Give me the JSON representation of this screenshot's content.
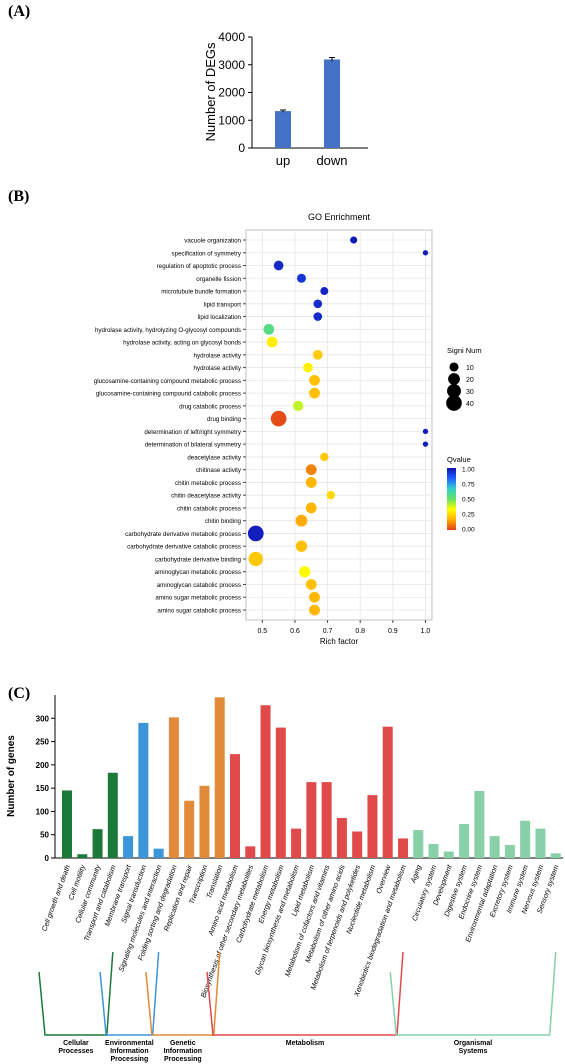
{
  "panels": {
    "a": "(A)",
    "b": "(B)",
    "c": "(C)"
  },
  "colors": {
    "bar_a": "#4472c4",
    "grid_b": "#e6e6e6",
    "qvalue_scale": [
      "#e0401a",
      "#ffb000",
      "#ffff00",
      "#66e066",
      "#33d0cc",
      "#2060ff",
      "#1010b0"
    ],
    "groups": {
      "cellular": "#1b7a3a",
      "environmental": "#3a96d8",
      "genetic": "#e08a3a",
      "metabolism": "#e04a4a",
      "organismal": "#88d0a8"
    }
  },
  "chart_data": [
    {
      "id": "A",
      "type": "bar",
      "categories": [
        "up",
        "down"
      ],
      "values": [
        1330,
        3190
      ],
      "errors": [
        40,
        70
      ],
      "title": "",
      "xlabel": "",
      "ylabel": "Number of DEGs",
      "ylim": [
        0,
        4000
      ],
      "yticks": [
        "0",
        "1000",
        "2000",
        "3000",
        "4000"
      ]
    },
    {
      "id": "B",
      "type": "scatter",
      "title": "GO Enrichment",
      "xlabel": "Rich factor",
      "xlim": [
        0.45,
        1.02
      ],
      "xticks": [
        "0.5",
        "0.6",
        "0.7",
        "0.8",
        "0.9",
        "1.0"
      ],
      "grid": true,
      "legend": {
        "size_title": "Signi Num",
        "size_labels": [
          "10",
          "20",
          "30",
          "40"
        ],
        "color_title": "Qvalue",
        "color_labels": [
          "1.00",
          "0.75",
          "0.50",
          "0.25",
          "0.00"
        ],
        "placement": "right"
      },
      "points": [
        {
          "term": "vacuole organization",
          "x": 0.78,
          "size": 5,
          "q": 0.98
        },
        {
          "term": "specification of symmetry",
          "x": 1.0,
          "size": 2,
          "q": 0.97
        },
        {
          "term": "regulation of apoptotic process",
          "x": 0.55,
          "size": 12,
          "q": 0.95
        },
        {
          "term": "organelle fission",
          "x": 0.62,
          "size": 10,
          "q": 0.92
        },
        {
          "term": "microtubule bundle formation",
          "x": 0.69,
          "size": 7,
          "q": 0.96
        },
        {
          "term": "lipid transport",
          "x": 0.67,
          "size": 9,
          "q": 0.94
        },
        {
          "term": "lipid localization",
          "x": 0.67,
          "size": 9,
          "q": 0.94
        },
        {
          "term": "hydrolase activity, hydrolyzing O-glycosyl compounds",
          "x": 0.52,
          "size": 16,
          "q": 0.55
        },
        {
          "term": "hydrolase activity, acting on glycosyl bonds",
          "x": 0.53,
          "size": 16,
          "q": 0.3
        },
        {
          "term": "hydrolase activity",
          "x": 0.67,
          "size": 12,
          "q": 0.22
        },
        {
          "term": "hydrolase activity",
          "x": 0.64,
          "size": 12,
          "q": 0.3
        },
        {
          "term": "glucosamine-containing compound metabolic process",
          "x": 0.66,
          "size": 16,
          "q": 0.2
        },
        {
          "term": "glucosamine-containing compound catabolic process",
          "x": 0.66,
          "size": 16,
          "q": 0.2
        },
        {
          "term": "drug catabolic process",
          "x": 0.61,
          "size": 14,
          "q": 0.4
        },
        {
          "term": "drug binding",
          "x": 0.55,
          "size": 40,
          "q": 0.02
        },
        {
          "term": "determination of left/right symmetry",
          "x": 1.0,
          "size": 2,
          "q": 0.97
        },
        {
          "term": "determination of bilateral symmetry",
          "x": 1.0,
          "size": 2,
          "q": 0.97
        },
        {
          "term": "deacetylase activity",
          "x": 0.69,
          "size": 8,
          "q": 0.22
        },
        {
          "term": "chitinase activity",
          "x": 0.65,
          "size": 16,
          "q": 0.1
        },
        {
          "term": "chitin metabolic process",
          "x": 0.65,
          "size": 16,
          "q": 0.18
        },
        {
          "term": "chitin deacetylase activity",
          "x": 0.71,
          "size": 8,
          "q": 0.25
        },
        {
          "term": "chitin catabolic process",
          "x": 0.65,
          "size": 16,
          "q": 0.18
        },
        {
          "term": "chitin binding",
          "x": 0.62,
          "size": 20,
          "q": 0.16
        },
        {
          "term": "carbohydrate derivative metabolic process",
          "x": 0.48,
          "size": 40,
          "q": 0.97
        },
        {
          "term": "carbohydrate derivative catabolic process",
          "x": 0.62,
          "size": 18,
          "q": 0.2
        },
        {
          "term": "carbohydrate derivative binding",
          "x": 0.48,
          "size": 32,
          "q": 0.22
        },
        {
          "term": "aminoglycan metabolic process",
          "x": 0.63,
          "size": 18,
          "q": 0.32
        },
        {
          "term": "aminoglycan catabolic process",
          "x": 0.65,
          "size": 16,
          "q": 0.2
        },
        {
          "term": "amino sugar metabolic process",
          "x": 0.66,
          "size": 16,
          "q": 0.18
        },
        {
          "term": "amino sugar catabolic process",
          "x": 0.66,
          "size": 16,
          "q": 0.18
        }
      ]
    },
    {
      "id": "C",
      "type": "bar",
      "ylabel": "Number of genes",
      "ylim": [
        0,
        350
      ],
      "yticks": [
        "0",
        "50",
        "100",
        "150",
        "200",
        "250",
        "300"
      ],
      "categories": [
        "Cell growth and death",
        "Cell motility",
        "Cellular community",
        "Transport and catabolism",
        "Membrane transport",
        "Signal transduction",
        "Signaling molecules and interaction",
        "Folding sorting and degradation",
        "Replication and repair",
        "Transcription",
        "Translation",
        "Amino acid metabolism",
        "Biosynthesis of other secondary metabolites",
        "Carbohydrate metabolism",
        "Energy metabolism",
        "Glycan biosynthesis and metabolism",
        "Lipid metabolism",
        "Metabolism of cofactors and vitamins",
        "Metabolism of other amino acids",
        "Metabolism of terpenoids and polyketides",
        "Nucleotide metabolism",
        "Overview",
        "Xenobiotics biodegradation and metabolism",
        "Aging",
        "Circulatory system",
        "Development",
        "Digestive system",
        "Endocrine system",
        "Environmental adaptation",
        "Excretory system",
        "Immune system",
        "Nervous system",
        "Sensory system"
      ],
      "values": [
        145,
        8,
        62,
        183,
        47,
        290,
        20,
        302,
        123,
        155,
        345,
        223,
        25,
        328,
        280,
        63,
        163,
        163,
        86,
        57,
        135,
        282,
        42,
        60,
        30,
        14,
        73,
        144,
        47,
        28,
        80,
        63,
        10
      ],
      "groups": [
        {
          "name": "Cellular\nProcesses",
          "key": "cellular",
          "start": 0,
          "end": 3
        },
        {
          "name": "Environmental\nInformation\nProcessing",
          "key": "environmental",
          "start": 4,
          "end": 6
        },
        {
          "name": "Genetic\nInformation\nProcessing",
          "key": "genetic",
          "start": 7,
          "end": 10
        },
        {
          "name": "Metabolism",
          "key": "metabolism",
          "start": 11,
          "end": 22
        },
        {
          "name": "Organismal\nSystems",
          "key": "organismal",
          "start": 23,
          "end": 32
        }
      ]
    }
  ]
}
